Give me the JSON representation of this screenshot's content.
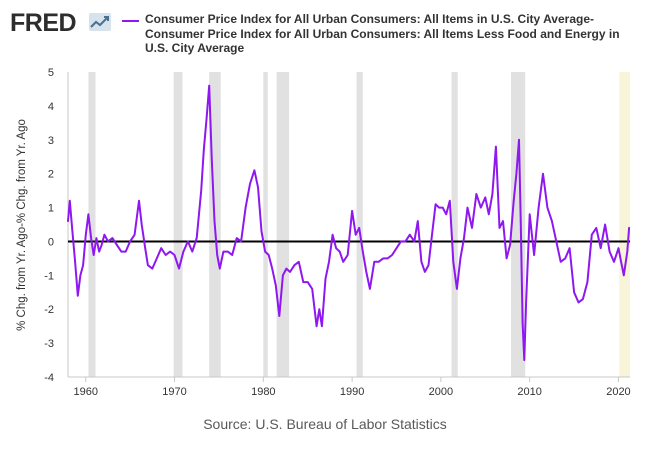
{
  "header": {
    "logo_text": "FRED",
    "logo_icon": "line-chart-icon",
    "legend_label": "Consumer Price Index for All Urban Consumers: All Items in U.S. City Average-Consumer Price Index for All Urban Consumers: All Items Less Food and Energy in U.S. City Average"
  },
  "colors": {
    "series": "#8f17f0",
    "recession": "#e1e1e1",
    "highlight": "#f7f4d7",
    "zero_line": "#000000",
    "text": "#333333"
  },
  "source_text": "Source: U.S. Bureau of Labor Statistics",
  "chart_data": {
    "type": "line",
    "title": "",
    "xlabel": "",
    "ylabel": "% Chg. from Yr. Ago-% Chg. from Yr. Ago",
    "xlim": [
      1958,
      2021.3
    ],
    "ylim": [
      -4,
      5
    ],
    "x_ticks": [
      1960,
      1970,
      1980,
      1990,
      2000,
      2010,
      2020
    ],
    "y_ticks": [
      5,
      4,
      3,
      2,
      1,
      0,
      -1,
      -2,
      -3,
      -4
    ],
    "grid": false,
    "zero_line": true,
    "recessions": [
      [
        1960.3,
        1961.1
      ],
      [
        1969.9,
        1970.9
      ],
      [
        1973.9,
        1975.2
      ],
      [
        1980.0,
        1980.5
      ],
      [
        1981.5,
        1982.9
      ],
      [
        1990.5,
        1991.2
      ],
      [
        2001.2,
        2001.9
      ],
      [
        2007.9,
        2009.5
      ]
    ],
    "highlight": [
      2020.1,
      2021.3
    ],
    "series": [
      {
        "name": "Consumer Price Index for All Urban Consumers: All Items in U.S. City Average-Consumer Price Index for All Urban Consumers: All Items Less Food and Energy in U.S. City Average",
        "x": [
          1958.0,
          1958.2,
          1958.5,
          1958.8,
          1959.1,
          1959.4,
          1959.7,
          1960.0,
          1960.3,
          1960.6,
          1960.9,
          1961.2,
          1961.5,
          1961.8,
          1962.1,
          1962.5,
          1963.0,
          1963.5,
          1964.0,
          1964.5,
          1965.0,
          1965.5,
          1966.0,
          1966.3,
          1966.7,
          1967.0,
          1967.5,
          1968.0,
          1968.5,
          1969.0,
          1969.5,
          1970.0,
          1970.5,
          1971.0,
          1971.5,
          1972.0,
          1972.5,
          1973.0,
          1973.3,
          1973.6,
          1973.9,
          1974.2,
          1974.5,
          1974.8,
          1975.1,
          1975.5,
          1976.0,
          1976.5,
          1977.0,
          1977.5,
          1978.0,
          1978.5,
          1979.0,
          1979.4,
          1979.8,
          1980.2,
          1980.6,
          1981.0,
          1981.4,
          1981.8,
          1982.2,
          1982.6,
          1983.0,
          1983.5,
          1984.0,
          1984.5,
          1985.0,
          1985.5,
          1986.0,
          1986.3,
          1986.6,
          1987.0,
          1987.4,
          1987.8,
          1988.2,
          1988.6,
          1989.0,
          1989.5,
          1990.0,
          1990.4,
          1990.8,
          1991.2,
          1991.6,
          1992.0,
          1992.5,
          1993.0,
          1993.5,
          1994.0,
          1994.5,
          1995.0,
          1995.5,
          1996.0,
          1996.5,
          1997.0,
          1997.4,
          1997.8,
          1998.2,
          1998.6,
          1999.0,
          1999.4,
          1999.8,
          2000.2,
          2000.6,
          2001.0,
          2001.4,
          2001.8,
          2002.2,
          2002.6,
          2003.0,
          2003.5,
          2004.0,
          2004.5,
          2005.0,
          2005.4,
          2005.8,
          2006.2,
          2006.6,
          2007.0,
          2007.4,
          2007.8,
          2008.2,
          2008.5,
          2008.8,
          2009.0,
          2009.2,
          2009.4,
          2009.6,
          2009.8,
          2010.0,
          2010.5,
          2011.0,
          2011.5,
          2012.0,
          2012.5,
          2013.0,
          2013.5,
          2014.0,
          2014.5,
          2015.0,
          2015.5,
          2016.0,
          2016.5,
          2017.0,
          2017.5,
          2018.0,
          2018.5,
          2019.0,
          2019.5,
          2020.0,
          2020.3,
          2020.6,
          2021.0,
          2021.2
        ],
        "values": [
          0.6,
          1.2,
          0.3,
          -0.6,
          -1.6,
          -1.0,
          -0.7,
          0.2,
          0.8,
          0.1,
          -0.4,
          0.1,
          -0.3,
          -0.1,
          0.2,
          0.0,
          0.1,
          -0.1,
          -0.3,
          -0.3,
          0.0,
          0.2,
          1.2,
          0.5,
          -0.2,
          -0.7,
          -0.8,
          -0.5,
          -0.2,
          -0.4,
          -0.3,
          -0.4,
          -0.8,
          -0.3,
          0.0,
          -0.3,
          0.1,
          1.5,
          2.7,
          3.6,
          4.6,
          2.4,
          0.6,
          -0.4,
          -0.8,
          -0.3,
          -0.3,
          -0.4,
          0.1,
          0.0,
          1.0,
          1.7,
          2.1,
          1.6,
          0.3,
          -0.3,
          -0.4,
          -0.8,
          -1.3,
          -2.2,
          -1.0,
          -0.8,
          -0.9,
          -0.7,
          -0.6,
          -1.2,
          -1.2,
          -1.4,
          -2.5,
          -2.0,
          -2.5,
          -1.1,
          -0.6,
          0.2,
          -0.2,
          -0.3,
          -0.6,
          -0.4,
          0.9,
          0.2,
          0.4,
          -0.3,
          -0.9,
          -1.4,
          -0.6,
          -0.6,
          -0.5,
          -0.5,
          -0.4,
          -0.2,
          0.0,
          0.0,
          0.2,
          0.0,
          0.6,
          -0.6,
          -0.9,
          -0.7,
          0.2,
          1.1,
          1.0,
          1.0,
          0.8,
          1.2,
          -0.6,
          -1.4,
          -0.5,
          0.1,
          1.0,
          0.4,
          1.4,
          1.0,
          1.3,
          0.8,
          1.4,
          2.8,
          0.4,
          0.6,
          -0.5,
          -0.1,
          1.2,
          2.0,
          3.0,
          0.5,
          -2.4,
          -3.5,
          -1.8,
          -0.5,
          0.8,
          -0.4,
          1.0,
          2.0,
          1.0,
          0.6,
          0.0,
          -0.6,
          -0.5,
          -0.2,
          -1.5,
          -1.8,
          -1.7,
          -1.2,
          0.2,
          0.4,
          -0.2,
          0.5,
          -0.3,
          -0.6,
          -0.2,
          -0.6,
          -1.0,
          -0.3,
          0.4
        ]
      }
    ]
  }
}
